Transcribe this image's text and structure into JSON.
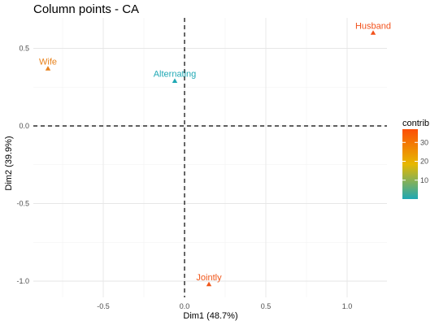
{
  "chart_data": {
    "type": "scatter",
    "title": "Column points - CA",
    "xlabel": "Dim1 (48.7%)",
    "ylabel": "Dim2 (39.9%)",
    "xlim": [
      -0.84,
      1.3
    ],
    "ylim": [
      -1.1,
      0.68
    ],
    "x_ticks": [
      -0.5,
      0.0,
      0.5,
      1.0
    ],
    "x_tick_labels": [
      "-0.5",
      "0.0",
      "0.5",
      "1.0"
    ],
    "y_ticks": [
      0.5,
      0.0,
      -0.5,
      -1.0
    ],
    "y_tick_labels": [
      "0.5",
      "0.0",
      "-0.5",
      "-1.0"
    ],
    "grid": true,
    "reference_lines": {
      "x": 0,
      "y": 0,
      "style": "dashed"
    },
    "points": [
      {
        "label": "Wife",
        "x": -0.84,
        "y": 0.37,
        "contrib": 24,
        "color": "#e8821c"
      },
      {
        "label": "Alternating",
        "x": -0.06,
        "y": 0.29,
        "contrib": 2,
        "color": "#1fa8b4"
      },
      {
        "label": "Husband",
        "x": 1.16,
        "y": 0.6,
        "contrib": 36,
        "color": "#f2511b"
      },
      {
        "label": "Jointly",
        "x": 0.15,
        "y": -1.02,
        "contrib": 34,
        "color": "#f0571b"
      }
    ],
    "legend": {
      "title": "contrib",
      "placement": "right",
      "ticks": [
        10,
        20,
        30
      ],
      "tick_labels": [
        "10",
        "20",
        "30"
      ],
      "range": [
        0,
        37
      ],
      "gradient": [
        "#1fa8b4",
        "#e7b800",
        "#fc4e07"
      ]
    }
  }
}
